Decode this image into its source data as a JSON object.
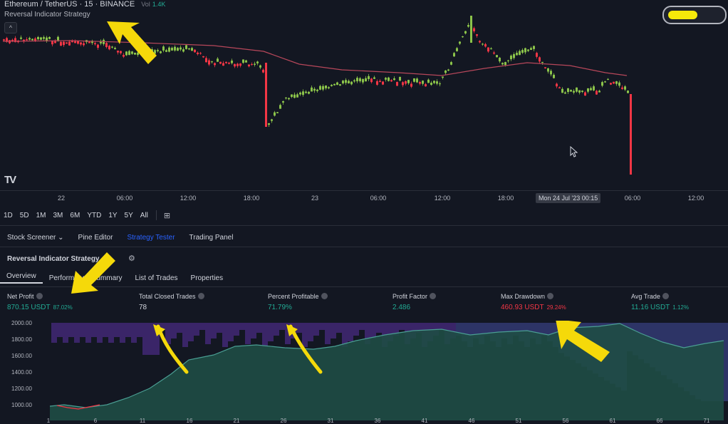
{
  "header": {
    "symbol": "Ethereum / TetherUS · 15 · BINANCE",
    "vol_label": "Vol",
    "vol_value": "1.4K",
    "indicator": "Reversal Indicator Strategy",
    "collapse_glyph": "^",
    "logo": "TV"
  },
  "progress": {
    "fraction": 0.55,
    "color": "#f5e90a"
  },
  "time_axis": {
    "labels": [
      "22",
      "06:00",
      "12:00",
      "18:00",
      "23",
      "06:00",
      "12:00",
      "18:00",
      "06:00",
      "12:00"
    ],
    "cursor": "Mon 24 Jul '23   00:15"
  },
  "range_buttons": [
    "1D",
    "5D",
    "1M",
    "3M",
    "6M",
    "YTD",
    "1Y",
    "5Y",
    "All"
  ],
  "panel_tabs": [
    "Stock Screener ⌄",
    "Pine Editor",
    "Strategy Tester",
    "Trading Panel"
  ],
  "strategy": {
    "name": "Reversal Indicator Strategy",
    "sub_tabs": [
      "Overview",
      "Performance Summary",
      "List of Trades",
      "Properties"
    ]
  },
  "metrics": [
    {
      "title": "Net Profit",
      "value": "870.15 USDT",
      "pct": "87.02%",
      "color": "green"
    },
    {
      "title": "Total Closed Trades",
      "value": "78",
      "pct": "",
      "color": "white"
    },
    {
      "title": "Percent Profitable",
      "value": "71.79%",
      "pct": "",
      "color": "green"
    },
    {
      "title": "Profit Factor",
      "value": "2.486",
      "pct": "",
      "color": "green"
    },
    {
      "title": "Max Drawdown",
      "value": "460.93 USDT",
      "pct": "29.24%",
      "color": "red"
    },
    {
      "title": "Avg Trade",
      "value": "11.16 USDT",
      "pct": "1.12%",
      "color": "green"
    }
  ],
  "equity": {
    "y_labels": [
      "2000.00",
      "1800.00",
      "1600.00",
      "1400.00",
      "1200.00",
      "1000.00"
    ],
    "x_labels": [
      "1",
      "6",
      "11",
      "16",
      "21",
      "26",
      "31",
      "36",
      "41",
      "46",
      "51",
      "56",
      "61",
      "66",
      "71"
    ]
  },
  "colors": {
    "background": "#131722",
    "bull": "#8bc34a",
    "bear": "#f23645",
    "ma": "#b7475a",
    "equity_fill": "#1f4d45",
    "drawdown_fill": "#4a2a7a",
    "highlight_arrow": "#f5d90a"
  }
}
